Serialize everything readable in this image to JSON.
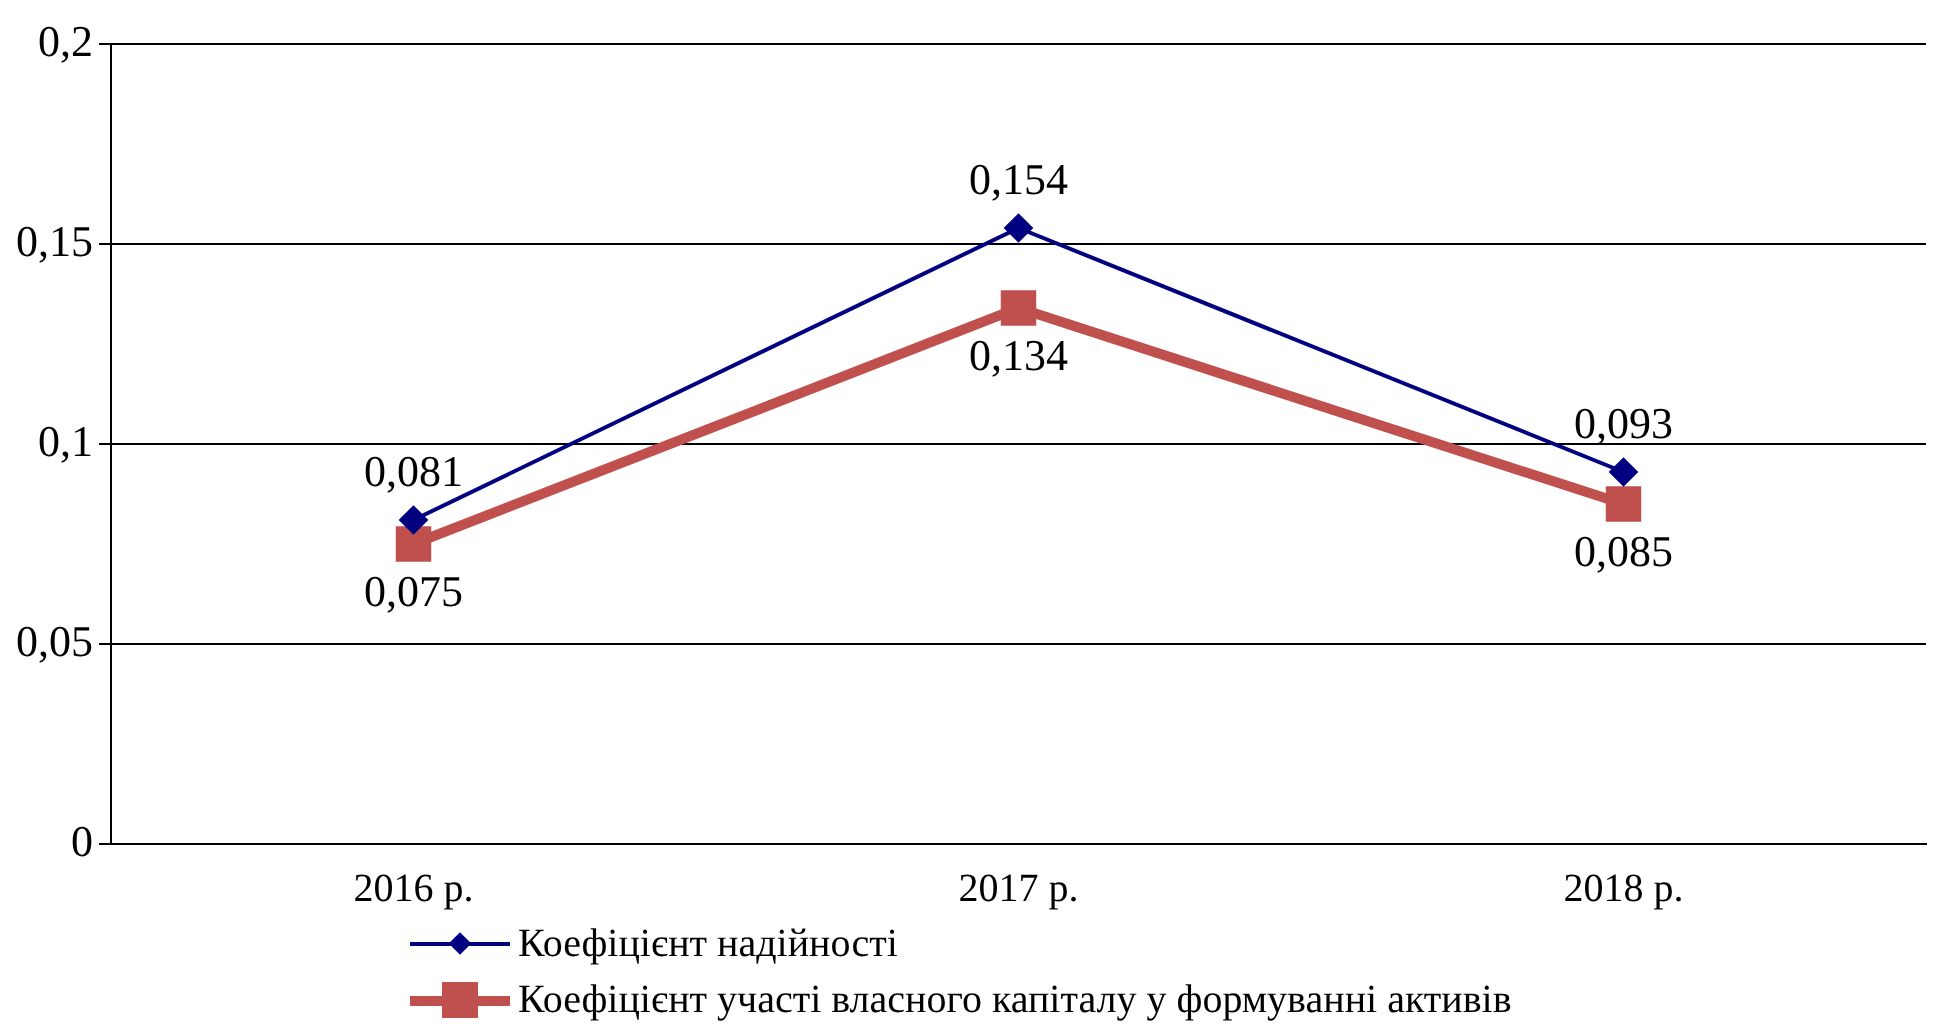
{
  "chart_data": {
    "type": "line",
    "categories": [
      "2016 р.",
      "2017 р.",
      "2018 р."
    ],
    "series": [
      {
        "name": "Коефіцієнт надійності",
        "color": "#000080",
        "marker": "diamond",
        "values": [
          0.081,
          0.154,
          0.093
        ],
        "value_labels": [
          "0,081",
          "0,154",
          "0,093"
        ]
      },
      {
        "name": "Коефіцієнт участі власного капіталу у формуванні активів",
        "color": "#c0504d",
        "marker": "square",
        "values": [
          0.075,
          0.134,
          0.085
        ],
        "value_labels": [
          "0,075",
          "0,134",
          "0,085"
        ]
      }
    ],
    "ylim": [
      0,
      0.2
    ],
    "yticks": [
      0,
      {
        "value": 0.05,
        "label": "0,05"
      },
      {
        "value": 0.1,
        "label": "0,1"
      },
      {
        "value": 0.15,
        "label": "0,15"
      },
      {
        "value": 0.2,
        "label": "0,2"
      }
    ],
    "grid": "y",
    "legend": "bottom",
    "line_style": "solid"
  }
}
